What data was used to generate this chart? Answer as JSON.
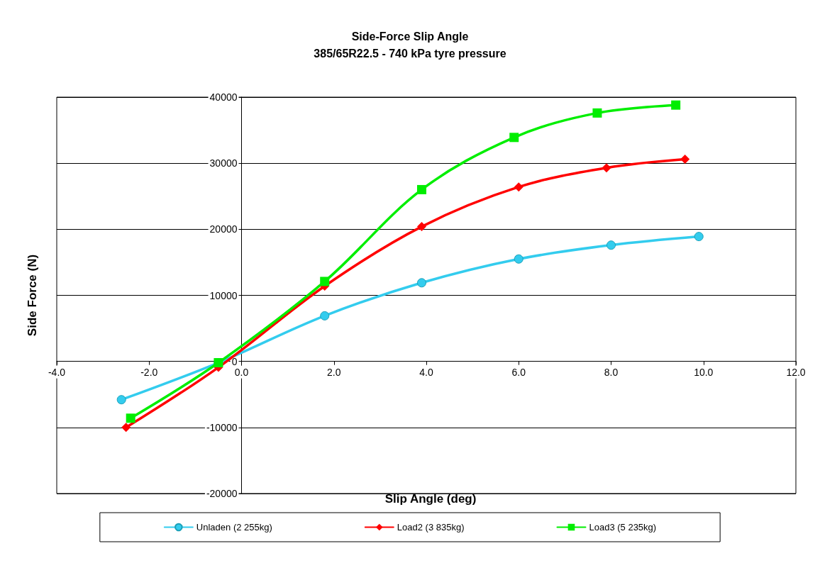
{
  "chart_data": {
    "type": "line",
    "title": "Side-Force Slip Angle",
    "subtitle": "385/65R22.5 - 740 kPa tyre pressure",
    "xlabel": "Slip Angle (deg)",
    "ylabel": "Side Force (N)",
    "xlim": [
      -4,
      12
    ],
    "xticks": [
      {
        "value": -4,
        "label": "-4.0"
      },
      {
        "value": -2,
        "label": "-2.0"
      },
      {
        "value": 0,
        "label": "0.0"
      },
      {
        "value": 2,
        "label": "2.0"
      },
      {
        "value": 4,
        "label": "4.0"
      },
      {
        "value": 6,
        "label": "6.0"
      },
      {
        "value": 8,
        "label": "8.0"
      },
      {
        "value": 10,
        "label": "10.0"
      },
      {
        "value": 12,
        "label": "12.0"
      }
    ],
    "ylim": [
      -20000,
      40000
    ],
    "yticks": [
      -20000,
      -10000,
      0,
      10000,
      20000,
      30000,
      40000
    ],
    "grid": "y",
    "legend": "bottom",
    "series": [
      {
        "name": "Unladen (2 255kg)",
        "color": "#33ccee",
        "marker": "circle",
        "x": [
          -2.6,
          -0.5,
          1.8,
          3.9,
          6.0,
          8.0,
          9.9
        ],
        "values": [
          -5800,
          -200,
          6900,
          11900,
          15500,
          17600,
          18900
        ]
      },
      {
        "name": "Load2 (3 835kg)",
        "color": "#ff0000",
        "marker": "diamond",
        "x": [
          -2.5,
          -0.5,
          1.8,
          3.9,
          6.0,
          7.9,
          9.6
        ],
        "values": [
          -10000,
          -900,
          11400,
          20400,
          26400,
          29300,
          30600
        ]
      },
      {
        "name": "Load3 (5 235kg)",
        "color": "#00ee00",
        "marker": "square",
        "x": [
          -2.4,
          -0.5,
          1.8,
          3.9,
          5.9,
          7.7,
          9.4
        ],
        "values": [
          -8600,
          -200,
          12100,
          26000,
          33900,
          37600,
          38800
        ]
      }
    ]
  }
}
